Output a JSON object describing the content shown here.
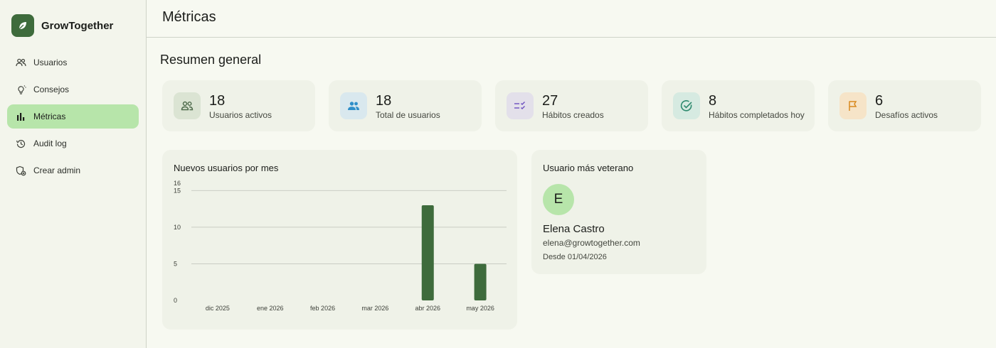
{
  "app": {
    "name": "GrowTogether"
  },
  "sidebar": {
    "items": [
      {
        "label": "Usuarios",
        "icon": "users-icon",
        "active": false
      },
      {
        "label": "Consejos",
        "icon": "lightbulb-icon",
        "active": false
      },
      {
        "label": "Métricas",
        "icon": "bar-chart-icon",
        "active": true
      },
      {
        "label": "Audit log",
        "icon": "history-icon",
        "active": false
      },
      {
        "label": "Crear admin",
        "icon": "add-admin-icon",
        "active": false
      }
    ]
  },
  "header": {
    "title": "Métricas"
  },
  "summary": {
    "title": "Resumen general",
    "cards": [
      {
        "value": "18",
        "label": "Usuarios activos",
        "icon": "users-outline-icon",
        "color": "#4e6b4b",
        "bg": "#dbe4d3"
      },
      {
        "value": "18",
        "label": "Total de usuarios",
        "icon": "group-icon",
        "color": "#2f8fc9",
        "bg": "#d9e8ee"
      },
      {
        "value": "27",
        "label": "Hábitos creados",
        "icon": "checklist-icon",
        "color": "#6c4fbf",
        "bg": "#e3e0ea"
      },
      {
        "value": "8",
        "label": "Hábitos completados hoy",
        "icon": "check-circle-icon",
        "color": "#2e8a6e",
        "bg": "#d6eae1"
      },
      {
        "value": "6",
        "label": "Desafíos activos",
        "icon": "flag-icon",
        "color": "#d98a1f",
        "bg": "#f6e4c8"
      }
    ]
  },
  "chart": {
    "title": "Nuevos usuarios por mes"
  },
  "chart_data": {
    "type": "bar",
    "title": "Nuevos usuarios por mes",
    "categories": [
      "dic 2025",
      "ene 2026",
      "feb 2026",
      "mar 2026",
      "abr 2026",
      "may 2026"
    ],
    "values": [
      0,
      0,
      0,
      0,
      13,
      5
    ],
    "yticks": [
      0,
      5,
      10,
      15,
      16
    ],
    "ylim": [
      0,
      16
    ],
    "grid": true,
    "bar_color": "#3e6b3c"
  },
  "veteran": {
    "title": "Usuario más veterano",
    "initial": "E",
    "name": "Elena Castro",
    "email": "elena@growtogether.com",
    "since": "Desde 01/04/2026"
  }
}
